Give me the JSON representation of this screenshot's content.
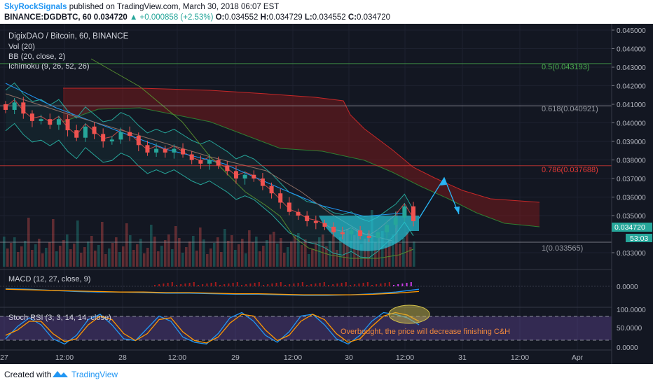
{
  "header": {
    "author": "SkyRockSignals",
    "published": "published on TradingView.com, March 30, 2018 06:07 EST",
    "symbol": "BINANCE:DGDBTC, 60",
    "last": "0.034720",
    "change": "▲ +0.000858 (+2.53%)",
    "o_label": "O:",
    "o": "0.034552",
    "h_label": "H:",
    "h": "0.034729",
    "l_label": "L:",
    "l": "0.034552",
    "c_label": "C:",
    "c": "0.034720"
  },
  "legend": {
    "title": "DigixDAO / Bitcoin, 60, BINANCE",
    "vol": "Vol (20)",
    "bb": "BB (20, close, 2)",
    "ichimoku": "Ichimoku (9, 26, 52, 26)",
    "macd": "MACD (12, 27, close, 9)",
    "stoch": "Stoch RSI (3, 3, 14, 14, close)"
  },
  "annotations": {
    "overbought": "Overbought, the price will decrease finishing C&H"
  },
  "footer": {
    "created_with": "Created with",
    "brand": "TradingView"
  },
  "colors": {
    "background": "#131722",
    "up": "#26a69a",
    "down": "#ef5350",
    "macd": "#2196f3",
    "signal": "#ff9800",
    "stoch_band": "#7e57c2",
    "cup_fill": "#26c6da",
    "cloud": "#8b1a1a"
  },
  "chart_data": [
    {
      "type": "candlestick",
      "title": "DigixDAO / Bitcoin, 60, BINANCE",
      "x_ticks": [
        "27",
        "12:00",
        "28",
        "12:00",
        "29",
        "12:00",
        "30",
        "12:00",
        "31",
        "12:00",
        "Apr"
      ],
      "y_ticks": [
        "0.045000",
        "0.044000",
        "0.043000",
        "0.042000",
        "0.041000",
        "0.040000",
        "0.039000",
        "0.038000",
        "0.037000",
        "0.036000",
        "0.035000",
        "0.033000"
      ],
      "ylim": [
        0.0327,
        0.0453
      ],
      "close_series": [
        0.0407,
        0.0411,
        0.0405,
        0.0401,
        0.0402,
        0.0399,
        0.0402,
        0.0396,
        0.0392,
        0.0398,
        0.0394,
        0.039,
        0.0391,
        0.0395,
        0.0393,
        0.0388,
        0.0384,
        0.0386,
        0.0384,
        0.0386,
        0.0383,
        0.038,
        0.0378,
        0.038,
        0.0377,
        0.0374,
        0.037,
        0.0372,
        0.037,
        0.0366,
        0.0362,
        0.0357,
        0.0352,
        0.035,
        0.0347,
        0.0346,
        0.0344,
        0.0341,
        0.034,
        0.0342,
        0.0339,
        0.0338,
        0.0341,
        0.0345,
        0.0349,
        0.0355,
        0.0347
      ],
      "fib_levels": [
        {
          "label": "0.5(0.043193)",
          "value": 0.043193
        },
        {
          "label": "0.618(0.040921)",
          "value": 0.040921
        },
        {
          "label": "0.786(0.037688)",
          "value": 0.037688
        },
        {
          "label": "1(0.033565)",
          "value": 0.033565
        }
      ],
      "price_tags": [
        "0.034720",
        "53:03"
      ]
    },
    {
      "type": "line",
      "title": "MACD (12, 27, close, 9)",
      "y_ticks": [
        "0.0000"
      ],
      "series": [
        {
          "values": [
            0.2,
            0.1,
            -0.1,
            -0.3,
            -0.4,
            -0.4,
            -0.5,
            -0.6,
            -0.6,
            -0.7,
            -0.8,
            -0.8,
            -0.9,
            -1.0,
            -1.0,
            -0.9,
            -0.7,
            -0.4,
            0.1
          ]
        },
        {
          "values": [
            0.1,
            0.0,
            -0.1,
            -0.2,
            -0.3,
            -0.4,
            -0.4,
            -0.5,
            -0.5,
            -0.6,
            -0.7,
            -0.7,
            -0.8,
            -0.9,
            -0.9,
            -0.9,
            -0.8,
            -0.6,
            -0.3
          ]
        }
      ]
    },
    {
      "type": "line",
      "title": "Stoch RSI (3, 3, 14, 14, close)",
      "y_ticks": [
        "100.0000",
        "50.0000",
        "0.0000"
      ],
      "ylim": [
        0,
        100
      ],
      "series": [
        {
          "values": [
            20,
            55,
            80,
            60,
            20,
            5,
            30,
            75,
            90,
            60,
            20,
            15,
            50,
            85,
            70,
            25,
            10,
            5,
            35,
            80,
            95,
            70,
            30,
            10,
            40,
            85,
            90,
            60,
            20,
            5,
            30,
            70,
            95,
            90,
            80,
            60
          ]
        },
        {
          "values": [
            30,
            45,
            70,
            70,
            35,
            12,
            20,
            60,
            85,
            75,
            35,
            15,
            35,
            75,
            80,
            40,
            15,
            8,
            25,
            65,
            90,
            85,
            45,
            15,
            30,
            70,
            90,
            75,
            35,
            10,
            20,
            55,
            85,
            95,
            88,
            70
          ]
        }
      ]
    }
  ]
}
